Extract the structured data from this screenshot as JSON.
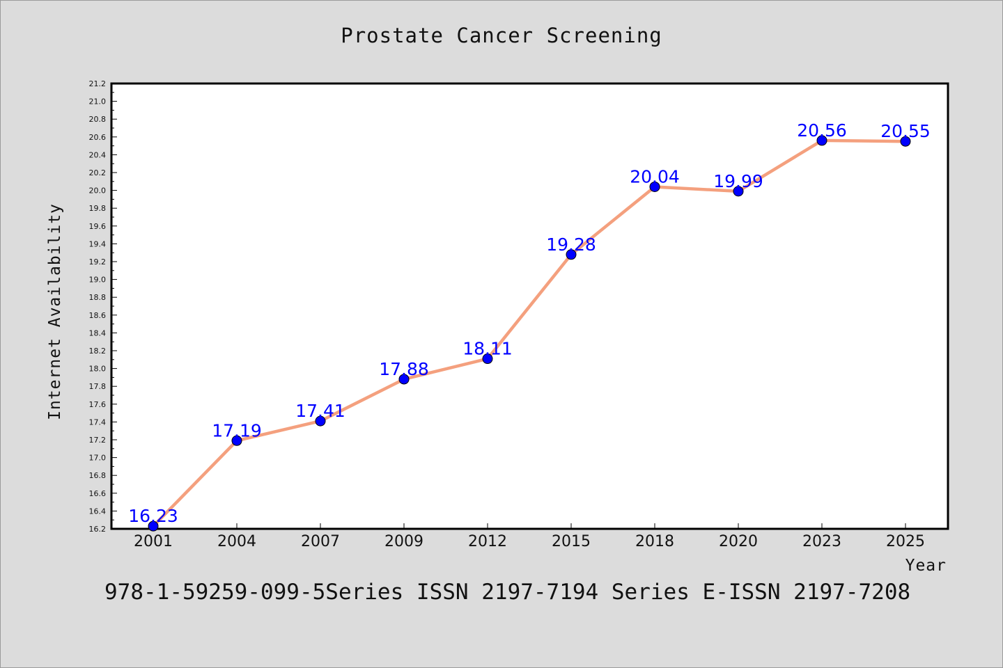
{
  "chart_data": {
    "type": "line",
    "title": "Prostate Cancer Screening",
    "xlabel": "Year",
    "ylabel": "Internet Availability",
    "categories": [
      "2001",
      "2004",
      "2007",
      "2009",
      "2012",
      "2015",
      "2018",
      "2020",
      "2023",
      "2025"
    ],
    "series": [
      {
        "values": [
          16.23,
          17.19,
          17.41,
          17.88,
          18.11,
          19.28,
          20.04,
          19.99,
          20.56,
          20.55
        ],
        "data_labels": [
          "16.23",
          "17.19",
          "17.41",
          "17.88",
          "18.11",
          "19.28",
          "20.04",
          "19.99",
          "20.56",
          "20.55"
        ],
        "line_color": "#f4a07e",
        "marker_color": "#0000ff"
      }
    ],
    "ylim": [
      16.2,
      21.2
    ],
    "yticks": [
      "16.2",
      "16.4",
      "16.6",
      "16.8",
      "17.0",
      "17.2",
      "17.4",
      "17.6",
      "17.8",
      "18.0",
      "18.2",
      "18.4",
      "18.6",
      "18.8",
      "19.0",
      "19.2",
      "19.4",
      "19.6",
      "19.8",
      "20.0",
      "20.2",
      "20.4",
      "20.6",
      "20.8",
      "21.0",
      "21.2"
    ],
    "grid": false,
    "legend": "none"
  },
  "footer": "978-1-59259-099-5Series ISSN 2197-7194 Series E-ISSN 2197-7208",
  "colors": {
    "background": "#dcdcdc",
    "plot_background": "#ffffff",
    "line": "#f4a07e",
    "marker": "#0000ff",
    "label": "#0000ff"
  }
}
